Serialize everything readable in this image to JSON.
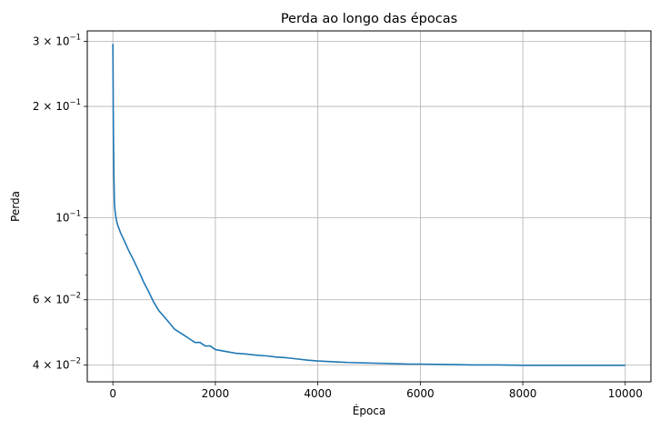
{
  "chart_data": {
    "type": "line",
    "title": "Perda ao longo das épocas",
    "xlabel": "Época",
    "ylabel": "Perda",
    "y_scale": "log",
    "grid": true,
    "xlim": [
      -500,
      10500
    ],
    "ylim": [
      0.036,
      0.32
    ],
    "x_ticks": [
      {
        "value": 0,
        "label": "0"
      },
      {
        "value": 2000,
        "label": "2000"
      },
      {
        "value": 4000,
        "label": "4000"
      },
      {
        "value": 6000,
        "label": "6000"
      },
      {
        "value": 8000,
        "label": "8000"
      },
      {
        "value": 10000,
        "label": "10000"
      }
    ],
    "y_ticks": [
      {
        "value": 0.04,
        "base": "4",
        "exp": "−2"
      },
      {
        "value": 0.06,
        "base": "6",
        "exp": "−2"
      },
      {
        "value": 0.1,
        "base": "",
        "exp": "−1"
      },
      {
        "value": 0.2,
        "base": "2",
        "exp": "−1"
      },
      {
        "value": 0.3,
        "base": "3",
        "exp": "−1"
      }
    ],
    "y_minor_ticks": [
      0.05,
      0.07,
      0.08,
      0.09
    ],
    "series": [
      {
        "color": "#1f77b4",
        "x": [
          0,
          10,
          20,
          30,
          40,
          60,
          80,
          100,
          150,
          200,
          300,
          400,
          500,
          600,
          700,
          800,
          900,
          1000,
          1100,
          1200,
          1300,
          1400,
          1500,
          1600,
          1700,
          1800,
          1900,
          2000,
          2200,
          2400,
          2600,
          2800,
          3000,
          3200,
          3400,
          3600,
          3800,
          4000,
          4300,
          4600,
          4900,
          5200,
          5500,
          5800,
          6000,
          6500,
          7000,
          7500,
          8000,
          8500,
          9000,
          9500,
          10000
        ],
        "y": [
          0.295,
          0.17,
          0.13,
          0.11,
          0.105,
          0.1,
          0.097,
          0.095,
          0.091,
          0.088,
          0.082,
          0.077,
          0.072,
          0.067,
          0.063,
          0.059,
          0.056,
          0.054,
          0.052,
          0.05,
          0.049,
          0.048,
          0.047,
          0.046,
          0.046,
          0.045,
          0.045,
          0.044,
          0.0435,
          0.043,
          0.0428,
          0.0425,
          0.0423,
          0.042,
          0.0418,
          0.0415,
          0.0412,
          0.041,
          0.0408,
          0.0406,
          0.0405,
          0.0404,
          0.0403,
          0.0402,
          0.0402,
          0.0401,
          0.04,
          0.04,
          0.0399,
          0.0399,
          0.0399,
          0.0399,
          0.0399
        ]
      }
    ]
  }
}
